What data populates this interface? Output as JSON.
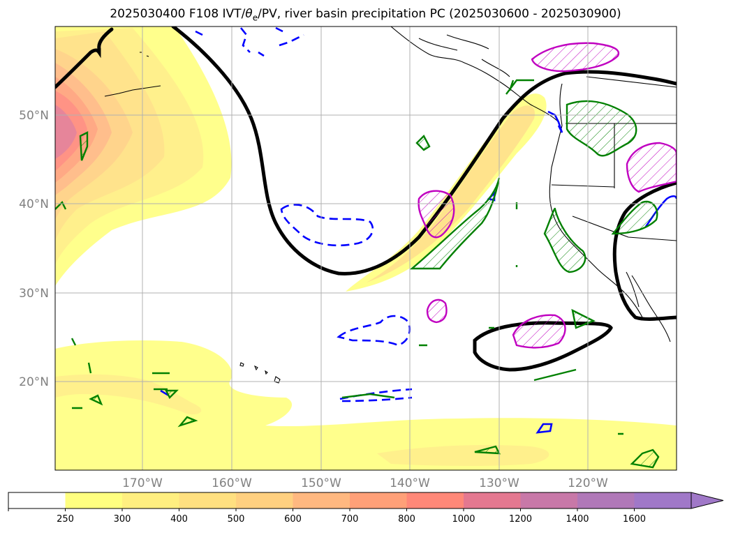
{
  "title": {
    "prefix": "2025030400 F108 IVT/",
    "theta": "θ",
    "sub": "e",
    "suffix": "/PV, river basin precipitation PC (2025030600 - 2025030900)"
  },
  "map": {
    "lat_labels": [
      "50°N",
      "40°N",
      "30°N",
      "20°N"
    ],
    "lon_labels": [
      "170°W",
      "160°W",
      "150°W",
      "140°W",
      "130°W",
      "120°W"
    ],
    "grid": true
  },
  "colorbar": {
    "ticks": [
      "250",
      "300",
      "400",
      "500",
      "600",
      "700",
      "800",
      "1000",
      "1200",
      "1400",
      "1600"
    ],
    "colors": [
      "#ffffff",
      "#ffff80",
      "#ffef80",
      "#ffe080",
      "#ffd080",
      "#ffb880",
      "#ffa078",
      "#ff8878",
      "#e47890",
      "#c878a8",
      "#b078b8",
      "#a078c8"
    ],
    "extend": "max"
  },
  "colors": {
    "theta_e_contour": "#000000",
    "pv_dashed": "#0000ff",
    "precip_green": "#008000",
    "precip_magenta": "#c000c0",
    "coastline": "#000000"
  }
}
